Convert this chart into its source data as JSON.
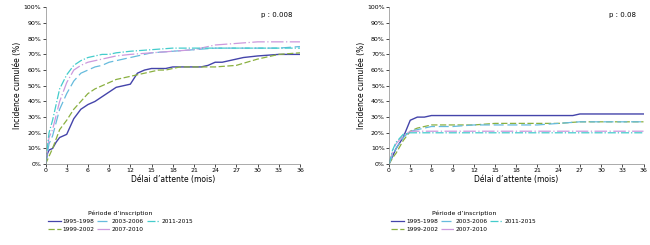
{
  "p_value_left": "p : 0.008",
  "p_value_right": "p : 0.08",
  "xlabel": "Délai d’attente (mois)",
  "ylabel": "Incidence cumulée (%)",
  "legend_title": "Période d’inscription",
  "legend_entries": [
    "1995-1998",
    "1999-2002",
    "2003-2006",
    "2007-2010",
    "2011-2015"
  ],
  "colors": {
    "1995-1998": "#4444aa",
    "1999-2002": "#8ab040",
    "2003-2006": "#66bbdd",
    "2007-2010": "#cc99dd",
    "2011-2015": "#44cccc"
  },
  "xticks": [
    0,
    3,
    6,
    9,
    12,
    15,
    18,
    21,
    24,
    27,
    30,
    33,
    36
  ],
  "yticks": [
    0,
    10,
    20,
    30,
    40,
    50,
    60,
    70,
    80,
    90,
    100
  ],
  "left_curves": {
    "1995-1998": {
      "x": [
        0,
        0.3,
        0.5,
        1,
        1.5,
        2,
        3,
        4,
        5,
        6,
        7,
        8,
        9,
        10,
        11,
        12,
        13,
        14,
        15,
        16,
        17,
        18,
        19,
        20,
        21,
        22,
        23,
        24,
        25,
        26,
        27,
        28,
        30,
        33,
        36
      ],
      "y": [
        0,
        7,
        9,
        10,
        14,
        17,
        19,
        29,
        35,
        38,
        40,
        43,
        46,
        49,
        50,
        51,
        58,
        60,
        61,
        61,
        61,
        62,
        62,
        62,
        62,
        62,
        63,
        65,
        65,
        66,
        67,
        68,
        69,
        70,
        70
      ]
    },
    "1999-2002": {
      "x": [
        0,
        0.5,
        1,
        2,
        3,
        4,
        5,
        6,
        7,
        8,
        9,
        10,
        11,
        12,
        13,
        14,
        15,
        16,
        17,
        18,
        19,
        21,
        24,
        27,
        30,
        33,
        36
      ],
      "y": [
        0,
        5,
        10,
        22,
        28,
        35,
        40,
        45,
        48,
        50,
        52,
        54,
        55,
        56,
        57,
        58,
        59,
        60,
        60,
        61,
        62,
        62,
        62,
        63,
        67,
        70,
        71
      ]
    },
    "2003-2006": {
      "x": [
        0,
        0.5,
        1,
        2,
        3,
        4,
        5,
        6,
        7,
        8,
        9,
        10,
        11,
        12,
        13,
        14,
        15,
        18,
        21,
        24,
        27,
        30,
        33,
        36
      ],
      "y": [
        0,
        13,
        18,
        35,
        45,
        53,
        58,
        60,
        62,
        63,
        65,
        66,
        67,
        68,
        69,
        70,
        71,
        72,
        73,
        74,
        74,
        74,
        74,
        75
      ]
    },
    "2007-2010": {
      "x": [
        0,
        0.5,
        1,
        2,
        3,
        4,
        5,
        6,
        7,
        8,
        9,
        10,
        12,
        15,
        18,
        21,
        24,
        27,
        30,
        33,
        36
      ],
      "y": [
        0,
        17,
        22,
        40,
        52,
        60,
        63,
        65,
        66,
        67,
        68,
        69,
        70,
        71,
        72,
        73,
        76,
        77,
        78,
        78,
        78
      ]
    },
    "2011-2015": {
      "x": [
        0,
        0.5,
        1,
        2,
        3,
        4,
        5,
        6,
        7,
        8,
        9,
        10,
        12,
        15,
        18,
        21,
        24,
        27,
        30,
        33,
        36
      ],
      "y": [
        0,
        20,
        28,
        48,
        57,
        63,
        66,
        68,
        69,
        70,
        70,
        71,
        72,
        73,
        74,
        74,
        74,
        74,
        74,
        74,
        74
      ]
    }
  },
  "right_curves": {
    "1995-1998": {
      "x": [
        0,
        0.5,
        1,
        2,
        3,
        4,
        5,
        6,
        9,
        12,
        15,
        18,
        21,
        24,
        25,
        26,
        27,
        30,
        33,
        36
      ],
      "y": [
        0,
        5,
        10,
        17,
        28,
        30,
        30,
        31,
        31,
        31,
        31,
        31,
        31,
        31,
        31,
        31,
        32,
        32,
        32,
        32
      ]
    },
    "1999-2002": {
      "x": [
        0,
        0.5,
        1,
        2,
        3,
        4,
        5,
        6,
        9,
        12,
        15,
        18,
        21,
        24,
        27,
        30,
        33,
        36
      ],
      "y": [
        0,
        4,
        7,
        15,
        21,
        23,
        24,
        25,
        25,
        25,
        26,
        26,
        26,
        26,
        27,
        27,
        27,
        27
      ]
    },
    "2003-2006": {
      "x": [
        0,
        0.5,
        1,
        2,
        3,
        4,
        5,
        6,
        9,
        12,
        15,
        18,
        21,
        24,
        27,
        30,
        33,
        36
      ],
      "y": [
        0,
        6,
        10,
        17,
        21,
        22,
        23,
        24,
        24,
        25,
        25,
        25,
        25,
        26,
        27,
        27,
        27,
        27
      ]
    },
    "2007-2010": {
      "x": [
        0,
        0.5,
        1,
        2,
        3,
        4,
        5,
        6,
        9,
        12,
        15,
        18,
        21,
        24,
        27,
        30,
        33,
        36
      ],
      "y": [
        0,
        8,
        13,
        18,
        21,
        21,
        21,
        21,
        21,
        21,
        21,
        21,
        21,
        21,
        21,
        21,
        21,
        21
      ]
    },
    "2011-2015": {
      "x": [
        0,
        0.5,
        1,
        2,
        3,
        4,
        5,
        6,
        9,
        12,
        15,
        18,
        21,
        24,
        27,
        30,
        33,
        36
      ],
      "y": [
        0,
        9,
        14,
        19,
        20,
        20,
        20,
        20,
        20,
        20,
        20,
        20,
        20,
        20,
        20,
        20,
        20,
        20
      ]
    }
  }
}
